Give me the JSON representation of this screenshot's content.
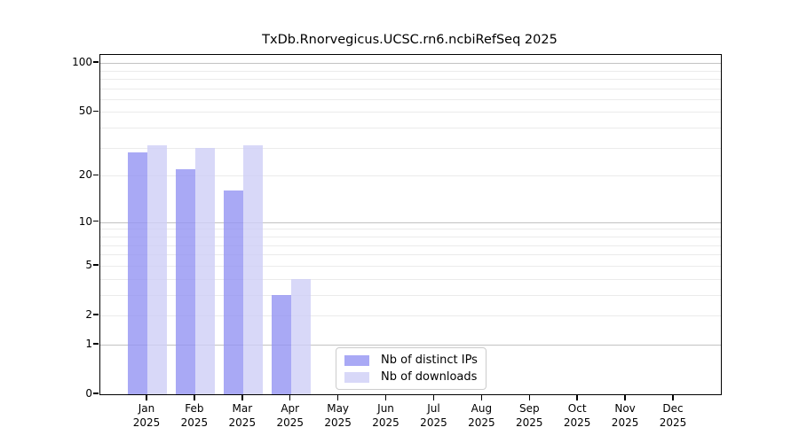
{
  "chart_data": {
    "type": "bar",
    "title": "TxDb.Rnorvegicus.UCSC.rn6.ncbiRefSeq 2025",
    "categories": [
      "Jan",
      "Feb",
      "Mar",
      "Apr",
      "May",
      "Jun",
      "Jul",
      "Aug",
      "Sep",
      "Oct",
      "Nov",
      "Dec"
    ],
    "x_tick_year": "2025",
    "series": [
      {
        "name": "Nb of distinct IPs",
        "values": [
          28,
          22,
          16,
          3,
          0,
          0,
          0,
          0,
          0,
          0,
          0,
          0
        ],
        "color": "rgba(148,148,242,0.8)"
      },
      {
        "name": "Nb of downloads",
        "values": [
          31,
          30,
          31,
          4,
          0,
          0,
          0,
          0,
          0,
          0,
          0,
          0
        ],
        "color": "rgba(206,206,246,0.8)"
      }
    ],
    "yscale": "log1p",
    "ylim": [
      0,
      112
    ],
    "yticks": [
      0,
      1,
      2,
      5,
      10,
      20,
      50,
      100
    ],
    "major_gridlines": [
      1,
      10,
      100
    ],
    "minor_gridlines": [
      2,
      3,
      4,
      5,
      6,
      7,
      8,
      9,
      20,
      30,
      40,
      50,
      60,
      70,
      80,
      90
    ],
    "grid": true,
    "legend_position": "inside lower-center",
    "frame_color": "#000000",
    "major_grid_color": "rgba(0,0,0,0.24)",
    "minor_grid_color": "rgba(0,0,0,0.08)"
  }
}
